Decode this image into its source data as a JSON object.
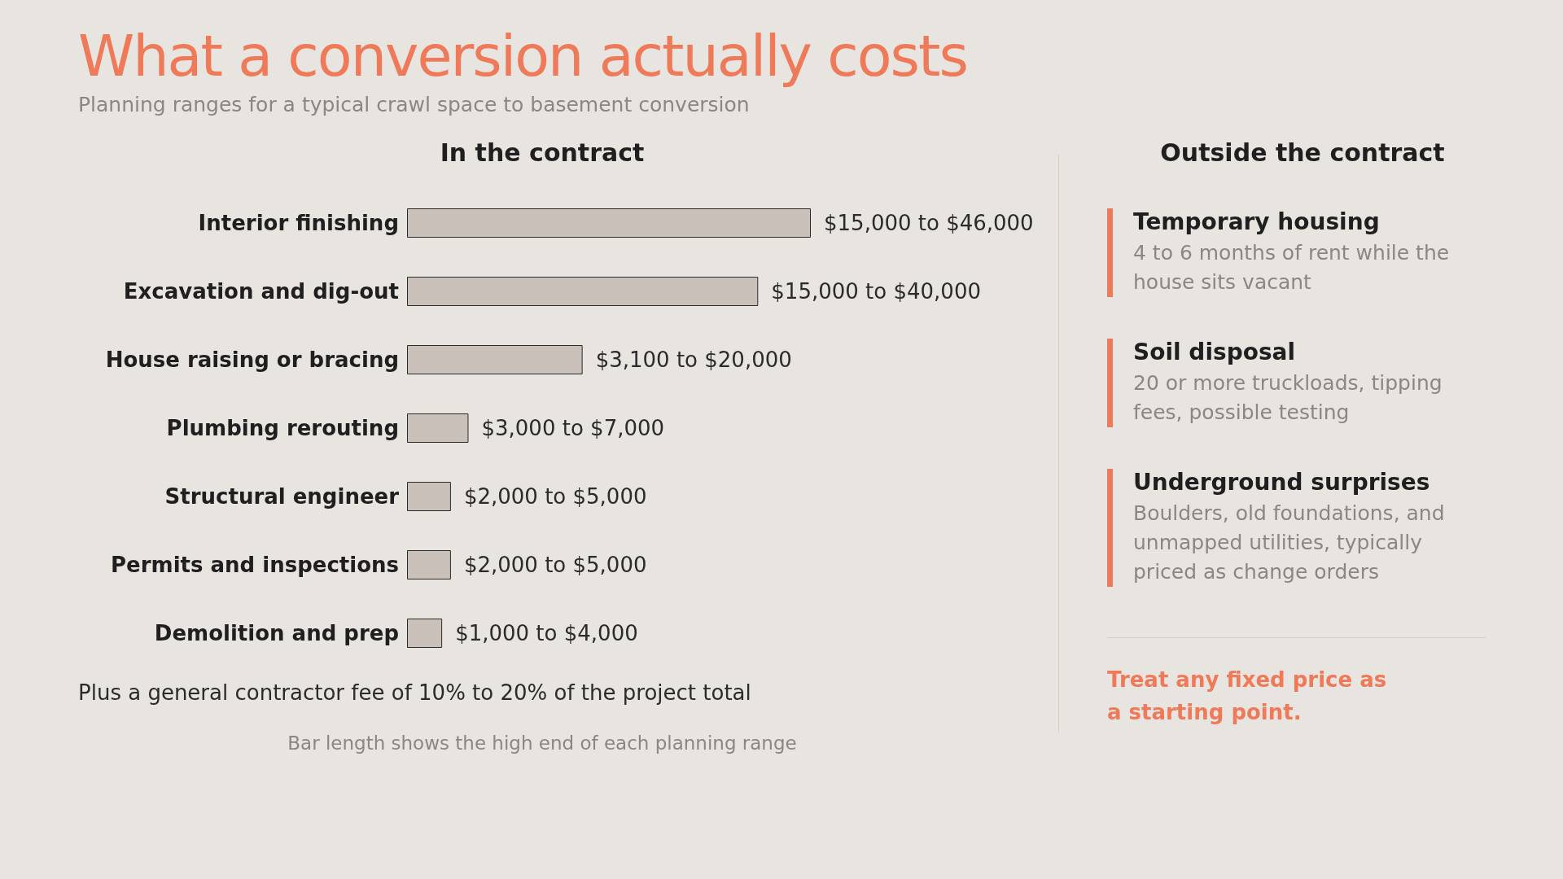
{
  "chart_data": [
    {
      "type": "bar",
      "orientation": "horizontal",
      "title": "What a conversion actually costs",
      "subtitle": "Planning ranges for a typical crawl space to basement conversion",
      "annotations": [
        "In the contract",
        "Plus a general contractor fee of 10% to 20% of the project total",
        "Bar length shows the high end of each planning range"
      ],
      "categories": [
        "Interior finishing",
        "Excavation and dig-out",
        "House raising or bracing",
        "Plumbing rerouting",
        "Structural engineer",
        "Permits and inspections",
        "Demolition and prep"
      ],
      "values": [
        46000,
        40000,
        20000,
        7000,
        5000,
        5000,
        4000
      ],
      "value_labels": [
        "$15,000 to $46,000",
        "$15,000 to $40,000",
        "$3,100 to $20,000",
        "$3,000 to $7,000",
        "$2,000 to $5,000",
        "$2,000 to $5,000",
        "$1,000 to $4,000"
      ],
      "color": "#c9c1b9"
    },
    {
      "type": "other",
      "title": "Outside the contract",
      "annotations": [
        "Temporary housing",
        "4 to 6 months of rent while the house sits vacant",
        "Soil disposal",
        "20 or more truckloads, tipping fees, possible testing",
        "Underground surprises",
        "Boulders, old foundations, and unmapped utilities, typically priced as change orders",
        "Treat any fixed price as a starting point."
      ]
    }
  ]
}
